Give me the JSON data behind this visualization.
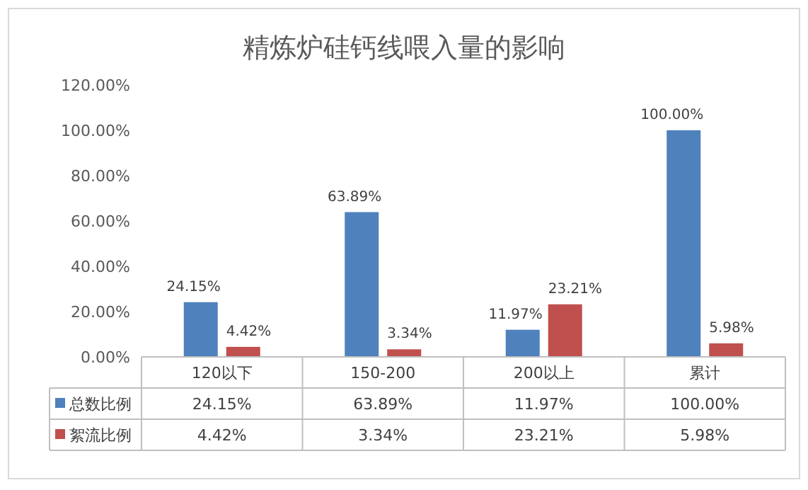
{
  "chart_data": {
    "type": "bar",
    "title": "精炼炉硅钙线喂入量的影响",
    "categories": [
      "120以下",
      "150-200",
      "200以上",
      "累计"
    ],
    "series": [
      {
        "name": "总数比例",
        "color": "#4f81bd",
        "values": [
          24.15,
          63.89,
          11.97,
          100.0
        ],
        "value_labels": [
          "24.15%",
          "63.89%",
          "11.97%",
          "100.00%"
        ]
      },
      {
        "name": "絮流比例",
        "color": "#c0504d",
        "values": [
          4.42,
          3.34,
          23.21,
          5.98
        ],
        "value_labels": [
          "4.42%",
          "3.34%",
          "23.21%",
          "5.98%"
        ]
      }
    ],
    "ylim": [
      0,
      120
    ],
    "yticks": [
      {
        "value": 0,
        "label": "0.00%"
      },
      {
        "value": 20,
        "label": "20.00%"
      },
      {
        "value": 40,
        "label": "40.00%"
      },
      {
        "value": 60,
        "label": "60.00%"
      },
      {
        "value": 80,
        "label": "80.00%"
      },
      {
        "value": 100,
        "label": "100.00%"
      },
      {
        "value": 120,
        "label": "120.00%"
      }
    ],
    "legend": "bottom"
  }
}
